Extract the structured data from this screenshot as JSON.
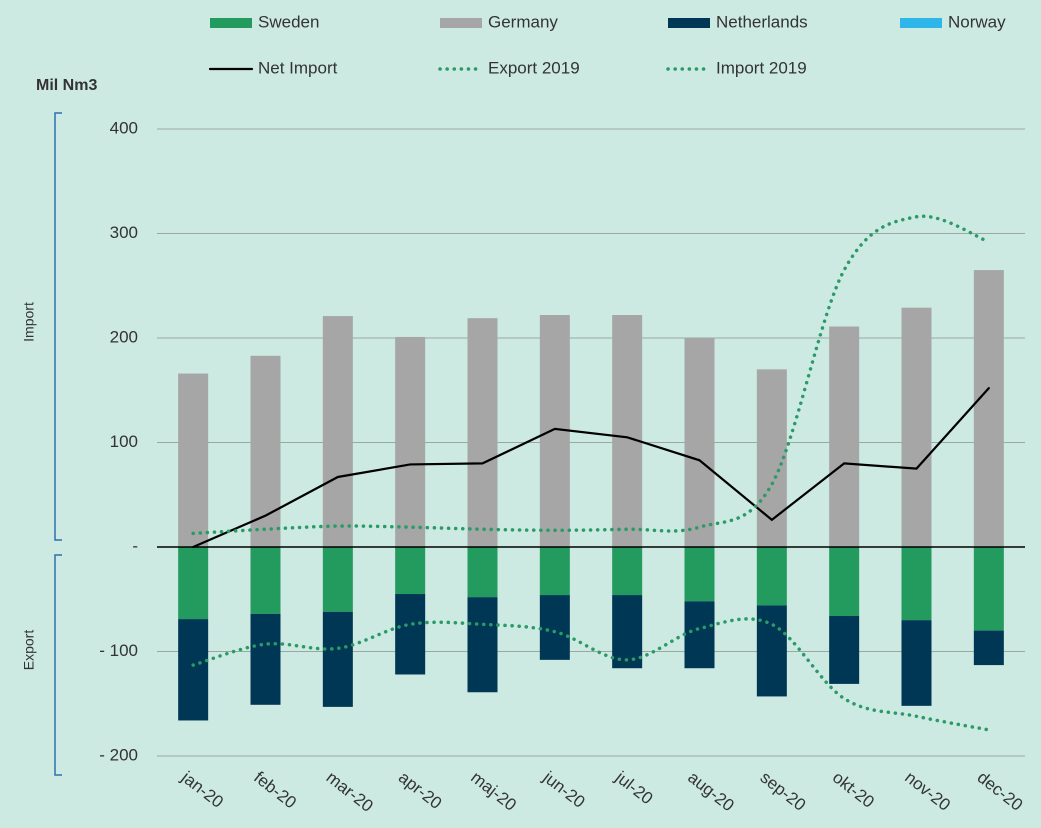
{
  "chart_data": {
    "type": "bar",
    "y_label": "Mil Nm3",
    "annotations": [
      "Import",
      "Export"
    ],
    "categories": [
      "jan-20",
      "feb-20",
      "mar-20",
      "apr-20",
      "maj-20",
      "jun-20",
      "jul-20",
      "aug-20",
      "sep-20",
      "okt-20",
      "nov-20",
      "dec-20"
    ],
    "series": [
      {
        "name": "Sweden",
        "type": "bar",
        "color": "#239a5e",
        "values": [
          -69,
          -64,
          -62,
          -45,
          -48,
          -46,
          -46,
          -52,
          -56,
          -66,
          -70,
          -80
        ]
      },
      {
        "name": "Germany",
        "type": "bar",
        "color": "#a6a6a6",
        "values": [
          166,
          183,
          221,
          201,
          219,
          222,
          222,
          200,
          170,
          211,
          229,
          265
        ]
      },
      {
        "name": "Netherlands",
        "type": "bar",
        "color": "#003755",
        "values": [
          -97,
          -87,
          -91,
          -77,
          -91,
          -62,
          -70,
          -64,
          -87,
          -65,
          -82,
          -33
        ]
      },
      {
        "name": "Norway",
        "type": "bar",
        "color": "#2eb5ea",
        "values": [
          0,
          0,
          0,
          0,
          0,
          0,
          0,
          0,
          0,
          0,
          0,
          0
        ]
      },
      {
        "name": "Net Import",
        "type": "line",
        "color": "#000000",
        "values": [
          0,
          30,
          67,
          79,
          80,
          113,
          105,
          83,
          26,
          80,
          75,
          152
        ]
      },
      {
        "name": "Export 2019",
        "type": "dotted",
        "color": "#2a9a68",
        "values": [
          -113,
          -93,
          -97,
          -74,
          -74,
          -81,
          -108,
          -78,
          -74,
          -145,
          -162,
          -175
        ]
      },
      {
        "name": "Import 2019",
        "type": "dotted",
        "color": "#2a9a68",
        "values": [
          13,
          17,
          20,
          19,
          17,
          16,
          17,
          19,
          60,
          265,
          316,
          292
        ]
      }
    ],
    "ylim": [
      -200,
      400
    ],
    "yticks": [
      {
        "value": -200,
        "label": "- 200"
      },
      {
        "value": -100,
        "label": "- 100"
      },
      {
        "value": 0,
        "label": "-"
      },
      100,
      200,
      300,
      400
    ],
    "grid": true
  }
}
